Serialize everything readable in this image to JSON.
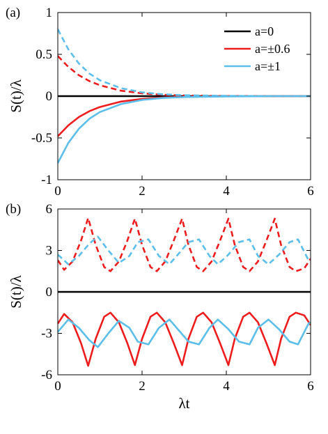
{
  "chart_data": [
    {
      "panel_label": "(a)",
      "type": "line",
      "xlim": [
        0,
        6
      ],
      "ylim": [
        -1,
        1
      ],
      "xticks": [
        0,
        2,
        4,
        6
      ],
      "yticks": [
        -1,
        -0.5,
        0,
        0.5,
        1
      ],
      "ytick_labels": [
        "-1",
        "-0.5",
        "0",
        "0.5",
        "1"
      ],
      "xlabel": "",
      "ylabel": "S(t)/λ",
      "legend": {
        "placement": "top-right",
        "entries": [
          "a=0",
          "a=±0.6",
          "a=±1"
        ]
      },
      "grid": false,
      "colors": {
        "a0": "#000000",
        "a06": "#ee1c1c",
        "a1": "#5bbfea"
      },
      "series": [
        {
          "name": "a=0",
          "style": "solid",
          "color": "#000000",
          "x": [
            0,
            1,
            2,
            3,
            4,
            5,
            6
          ],
          "y": [
            0,
            0,
            0,
            0,
            0,
            0,
            0
          ]
        },
        {
          "name": "a=±0.6",
          "style": "solid",
          "color": "#ee1c1c",
          "x": [
            0,
            0.25,
            0.5,
            0.75,
            1,
            1.5,
            2,
            2.5,
            3,
            4,
            5,
            6
          ],
          "y": [
            -0.48,
            -0.35,
            -0.25,
            -0.18,
            -0.13,
            -0.065,
            -0.033,
            -0.016,
            -0.008,
            -0.002,
            0,
            0
          ]
        },
        {
          "name": "a=±0.6",
          "style": "dashed",
          "color": "#ee1c1c",
          "x": [
            0,
            0.25,
            0.5,
            0.75,
            1,
            1.5,
            2,
            2.5,
            3,
            4,
            5,
            6
          ],
          "y": [
            0.48,
            0.35,
            0.25,
            0.18,
            0.13,
            0.065,
            0.033,
            0.016,
            0.008,
            0.002,
            0,
            0
          ]
        },
        {
          "name": "a=±1",
          "style": "solid",
          "color": "#5bbfea",
          "x": [
            0,
            0.25,
            0.5,
            0.75,
            1,
            1.5,
            2,
            2.5,
            3,
            4,
            5,
            6
          ],
          "y": [
            -0.8,
            -0.56,
            -0.39,
            -0.27,
            -0.19,
            -0.095,
            -0.046,
            -0.022,
            -0.011,
            -0.003,
            0,
            0
          ]
        },
        {
          "name": "a=±1",
          "style": "dashed",
          "color": "#5bbfea",
          "x": [
            0,
            0.25,
            0.5,
            0.75,
            1,
            1.5,
            2,
            2.5,
            3,
            4,
            5,
            6
          ],
          "y": [
            0.8,
            0.56,
            0.39,
            0.27,
            0.19,
            0.095,
            0.046,
            0.022,
            0.011,
            0.003,
            0,
            0
          ]
        }
      ]
    },
    {
      "panel_label": "(b)",
      "type": "line",
      "xlim": [
        0,
        6
      ],
      "ylim": [
        -6,
        6
      ],
      "xticks": [
        0,
        2,
        4,
        6
      ],
      "yticks": [
        -6,
        -3,
        0,
        3,
        6
      ],
      "ytick_labels": [
        "-6",
        "-3",
        "0",
        "3",
        "6"
      ],
      "xlabel": "λt",
      "ylabel": "S(t)/λ",
      "grid": false,
      "series": [
        {
          "name": "a=0",
          "style": "solid",
          "color": "#000000",
          "x": [
            0,
            1,
            2,
            3,
            4,
            5,
            6
          ],
          "y": [
            0,
            0,
            0,
            0,
            0,
            0,
            0
          ]
        },
        {
          "name": "a=±0.6",
          "style": "dashed",
          "color": "#ee1c1c",
          "x": [
            0,
            0.15,
            0.35,
            0.55,
            0.72,
            0.9,
            1.1,
            1.25,
            1.45,
            1.65,
            1.83,
            2.0,
            2.2,
            2.35,
            2.55,
            2.75,
            2.95,
            3.1,
            3.3,
            3.45,
            3.65,
            3.85,
            4.05,
            4.2,
            4.4,
            4.55,
            4.75,
            4.95,
            5.15,
            5.3,
            5.5,
            5.65,
            5.85,
            6.0
          ],
          "y": [
            2.3,
            1.6,
            2.2,
            3.7,
            5.35,
            3.4,
            1.8,
            1.5,
            2.2,
            3.7,
            5.3,
            3.4,
            1.8,
            1.5,
            2.2,
            3.7,
            5.3,
            3.4,
            1.8,
            1.5,
            2.2,
            3.7,
            5.3,
            3.4,
            1.8,
            1.5,
            2.2,
            3.7,
            5.3,
            3.4,
            1.8,
            1.5,
            1.7,
            2.4
          ]
        },
        {
          "name": "a=±1",
          "style": "dashed",
          "color": "#5bbfea",
          "x": [
            0,
            0.25,
            0.5,
            0.75,
            0.95,
            1.2,
            1.45,
            1.7,
            1.9,
            2.15,
            2.4,
            2.65,
            2.85,
            3.1,
            3.35,
            3.6,
            3.8,
            4.05,
            4.3,
            4.55,
            4.75,
            5.0,
            5.25,
            5.5,
            5.7,
            5.95,
            6.0
          ],
          "y": [
            2.7,
            2.0,
            2.6,
            3.5,
            4.0,
            3.0,
            2.1,
            2.6,
            3.6,
            3.8,
            2.6,
            2.0,
            2.7,
            3.6,
            3.8,
            2.6,
            2.0,
            2.7,
            3.6,
            3.8,
            2.6,
            2.0,
            2.7,
            3.6,
            3.8,
            2.3,
            2.2
          ]
        },
        {
          "name": "a=±0.6",
          "style": "solid",
          "color": "#ee1c1c",
          "x": [
            0,
            0.15,
            0.35,
            0.55,
            0.72,
            0.9,
            1.1,
            1.25,
            1.45,
            1.65,
            1.83,
            2.0,
            2.2,
            2.35,
            2.55,
            2.75,
            2.95,
            3.1,
            3.3,
            3.45,
            3.65,
            3.85,
            4.05,
            4.2,
            4.4,
            4.55,
            4.75,
            4.95,
            5.15,
            5.3,
            5.5,
            5.65,
            5.85,
            6.0
          ],
          "y": [
            -2.3,
            -1.6,
            -2.2,
            -3.7,
            -5.35,
            -3.4,
            -1.8,
            -1.5,
            -2.2,
            -3.7,
            -5.3,
            -3.4,
            -1.8,
            -1.5,
            -2.2,
            -3.7,
            -5.3,
            -3.4,
            -1.8,
            -1.5,
            -2.2,
            -3.7,
            -5.3,
            -3.4,
            -1.8,
            -1.5,
            -2.2,
            -3.7,
            -5.3,
            -3.4,
            -1.8,
            -1.5,
            -1.7,
            -2.4
          ]
        },
        {
          "name": "a=±1",
          "style": "solid",
          "color": "#5bbfea",
          "x": [
            0,
            0.25,
            0.5,
            0.75,
            0.95,
            1.2,
            1.45,
            1.7,
            1.9,
            2.15,
            2.4,
            2.65,
            2.85,
            3.1,
            3.35,
            3.6,
            3.8,
            4.05,
            4.3,
            4.55,
            4.75,
            5.0,
            5.25,
            5.5,
            5.7,
            5.95,
            6.0
          ],
          "y": [
            -2.9,
            -2.0,
            -2.6,
            -3.5,
            -4.0,
            -3.0,
            -2.1,
            -2.6,
            -3.6,
            -3.8,
            -2.6,
            -2.0,
            -2.7,
            -3.6,
            -3.8,
            -2.6,
            -2.0,
            -2.7,
            -3.6,
            -3.8,
            -2.6,
            -2.0,
            -2.7,
            -3.6,
            -3.8,
            -2.3,
            -2.2
          ]
        }
      ]
    }
  ]
}
